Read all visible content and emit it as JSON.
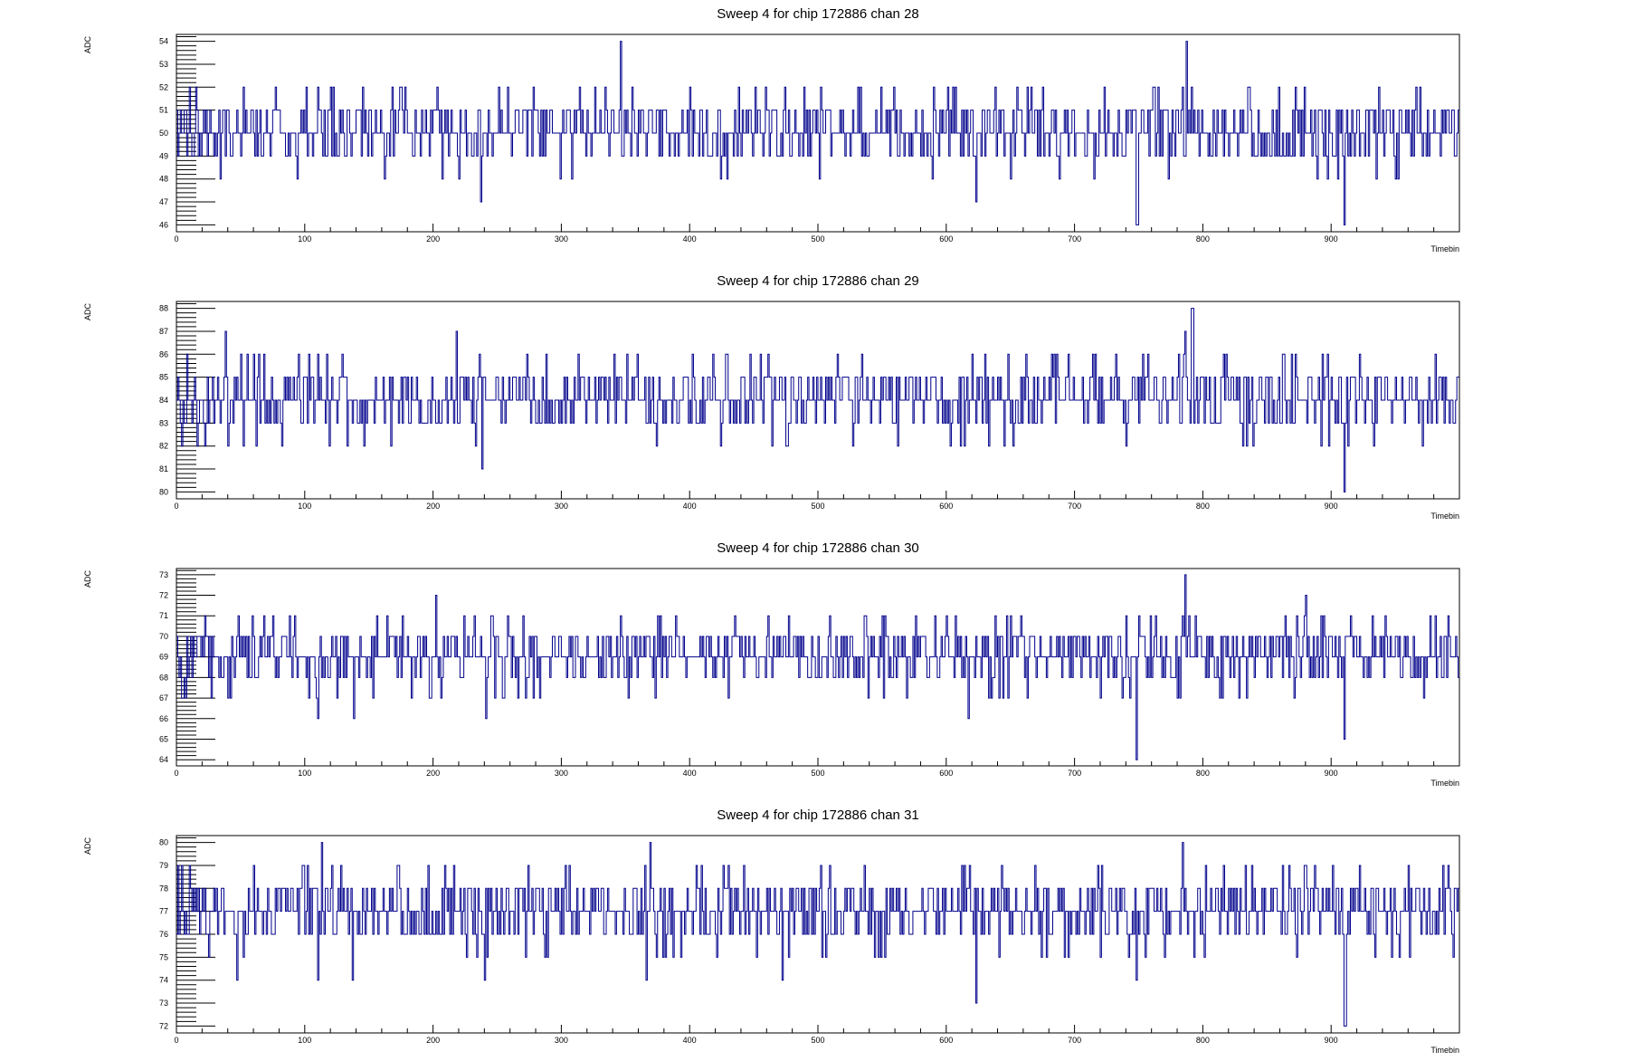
{
  "chart_data": [
    {
      "type": "line",
      "step": true,
      "title": "Sweep 4 for chip 172886 chan 28",
      "xlabel": "Timebin",
      "ylabel": "ADC",
      "xlim": [
        0,
        1000
      ],
      "ylim": [
        45.7,
        54.3
      ],
      "x_ticks": [
        0,
        100,
        200,
        300,
        400,
        500,
        600,
        700,
        800,
        900
      ],
      "y_ticks": [
        46,
        47,
        48,
        49,
        50,
        51,
        52,
        53,
        54
      ],
      "color": "#00008b",
      "baseline": 50.4,
      "amplitude": 2,
      "extremes": [
        [
          346,
          54
        ],
        [
          787,
          53.9
        ],
        [
          237,
          47
        ],
        [
          748,
          46
        ],
        [
          749,
          46
        ],
        [
          910,
          46
        ],
        [
          623,
          47
        ],
        [
          220,
          48
        ]
      ],
      "seed": 28
    },
    {
      "type": "line",
      "step": true,
      "title": "Sweep 4 for chip 172886 chan 29",
      "xlabel": "Timebin",
      "ylabel": "ADC",
      "xlim": [
        0,
        1000
      ],
      "ylim": [
        79.7,
        88.3
      ],
      "x_ticks": [
        0,
        100,
        200,
        300,
        400,
        500,
        600,
        700,
        800,
        900
      ],
      "y_ticks": [
        80,
        81,
        82,
        83,
        84,
        85,
        86,
        87,
        88
      ],
      "color": "#00008b",
      "baseline": 84.3,
      "amplitude": 2,
      "extremes": [
        [
          791,
          88
        ],
        [
          792,
          88
        ],
        [
          38,
          87
        ],
        [
          218,
          87
        ],
        [
          786,
          87
        ],
        [
          238,
          81
        ],
        [
          910,
          80
        ],
        [
          82,
          82
        ],
        [
          146,
          82
        ],
        [
          633,
          82
        ]
      ],
      "seed": 29
    },
    {
      "type": "line",
      "step": true,
      "title": "Sweep 4 for chip 172886 chan 30",
      "xlabel": "Timebin",
      "ylabel": "ADC",
      "xlim": [
        0,
        1000
      ],
      "ylim": [
        63.7,
        73.3
      ],
      "x_ticks": [
        0,
        100,
        200,
        300,
        400,
        500,
        600,
        700,
        800,
        900
      ],
      "y_ticks": [
        64,
        65,
        66,
        67,
        68,
        69,
        70,
        71,
        72,
        73
      ],
      "color": "#00008b",
      "baseline": 68.8,
      "amplitude": 2,
      "extremes": [
        [
          786,
          73
        ],
        [
          202,
          72
        ],
        [
          880,
          72
        ],
        [
          748,
          64
        ],
        [
          910,
          65
        ],
        [
          241,
          66
        ],
        [
          110,
          66
        ],
        [
          138,
          66
        ],
        [
          617,
          66
        ]
      ],
      "seed": 30
    },
    {
      "type": "line",
      "step": true,
      "title": "Sweep 4 for chip 172886 chan 31",
      "xlabel": "Timebin",
      "ylabel": "ADC",
      "xlim": [
        0,
        1000
      ],
      "ylim": [
        71.7,
        80.3
      ],
      "x_ticks": [
        0,
        100,
        200,
        300,
        400,
        500,
        600,
        700,
        800,
        900
      ],
      "y_ticks": [
        72,
        73,
        74,
        75,
        76,
        77,
        78,
        79,
        80
      ],
      "color": "#00008b",
      "baseline": 76.8,
      "amplitude": 2,
      "extremes": [
        [
          113,
          80
        ],
        [
          369,
          80
        ],
        [
          784,
          80
        ],
        [
          623,
          73
        ],
        [
          910,
          72
        ],
        [
          911,
          72
        ],
        [
          47,
          74
        ],
        [
          110,
          74
        ],
        [
          137,
          74
        ],
        [
          240,
          74
        ],
        [
          366,
          74
        ],
        [
          472,
          74
        ],
        [
          748,
          74
        ]
      ],
      "seed": 31
    }
  ]
}
